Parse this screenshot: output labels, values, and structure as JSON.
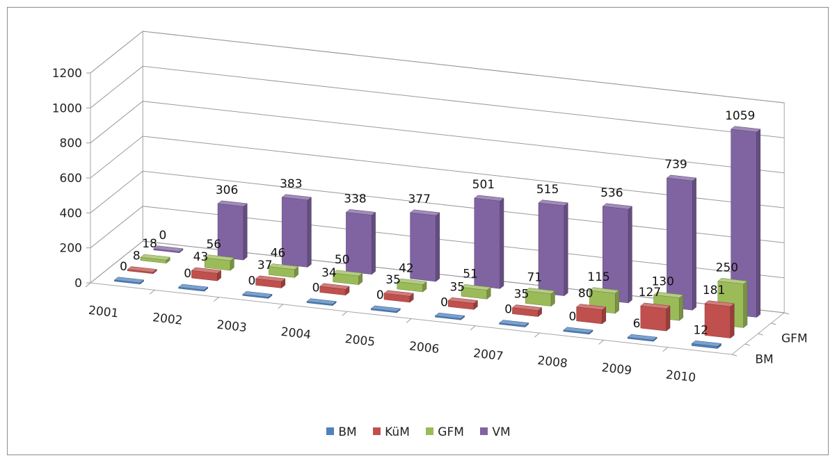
{
  "chart_data": {
    "type": "bar",
    "title": "",
    "xlabel": "",
    "ylabel": "",
    "ylim": [
      0,
      1200
    ],
    "y_ticks": [
      "0",
      "200",
      "400",
      "600",
      "800",
      "1000",
      "1200"
    ],
    "categories": [
      "2001",
      "2002",
      "2003",
      "2004",
      "2005",
      "2006",
      "2007",
      "2008",
      "2009",
      "2010"
    ],
    "depth_axis_labels": [
      "BM",
      "GFM"
    ],
    "grid": true,
    "legend_position": "bottom",
    "series": [
      {
        "name": "BM",
        "color": "#4f81bd",
        "values": [
          0,
          0,
          0,
          0,
          0,
          0,
          0,
          0,
          6,
          12
        ]
      },
      {
        "name": "KüM",
        "color": "#c0504d",
        "values": [
          8,
          43,
          37,
          34,
          35,
          35,
          35,
          80,
          127,
          181
        ]
      },
      {
        "name": "GFM",
        "color": "#9bbb59",
        "values": [
          18,
          56,
          46,
          50,
          42,
          51,
          71,
          115,
          130,
          250
        ]
      },
      {
        "name": "VM",
        "color": "#8064a2",
        "values": [
          0,
          306,
          383,
          338,
          377,
          501,
          515,
          536,
          739,
          1059
        ]
      }
    ]
  }
}
